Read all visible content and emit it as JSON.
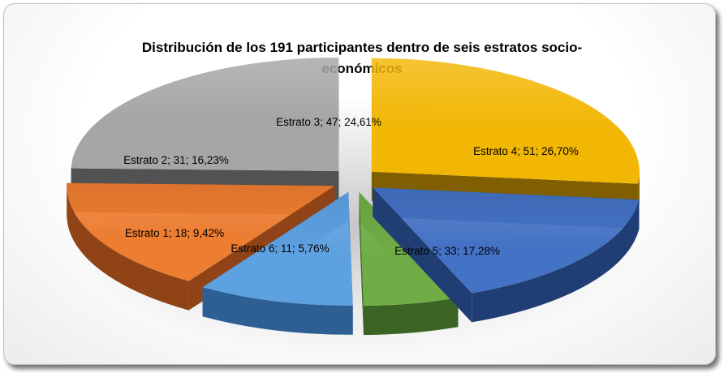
{
  "chart_data": {
    "type": "pie",
    "title_line1": "Distribución de los 191 participantes dentro de seis estratos socio-",
    "title_line2": "económicos",
    "slices": [
      {
        "name": "Estrato 1",
        "value": 18,
        "percent": "9,42%",
        "label": "Estrato 1; 18; 9,42%",
        "color": "#5ea1e0",
        "dark": "#2e5f93"
      },
      {
        "name": "Estrato 2",
        "value": 31,
        "percent": "16,23%",
        "label": "Estrato 2; 31; 16,23%",
        "color": "#ed7d31",
        "dark": "#8f4316"
      },
      {
        "name": "Estrato 3",
        "value": 47,
        "percent": "24,61%",
        "label": "Estrato 3; 47; 24,61%",
        "color": "#a6a6a6",
        "dark": "#525252"
      },
      {
        "name": "Estrato 4",
        "value": 51,
        "percent": "26,70%",
        "label": "Estrato 4; 51; 26,70%",
        "color": "#f2b705",
        "dark": "#7f5f00"
      },
      {
        "name": "Estrato 5",
        "value": 33,
        "percent": "17,28%",
        "label": "Estrato 5; 33; 17,28%",
        "color": "#4472c4",
        "dark": "#213e74"
      },
      {
        "name": "Estrato 6",
        "value": 11,
        "percent": "5,76%",
        "label": "Estrato 6; 11; 5,76%",
        "color": "#70ad47",
        "dark": "#3b6424"
      }
    ],
    "exploded": true,
    "three_d": true,
    "legend": "none"
  }
}
